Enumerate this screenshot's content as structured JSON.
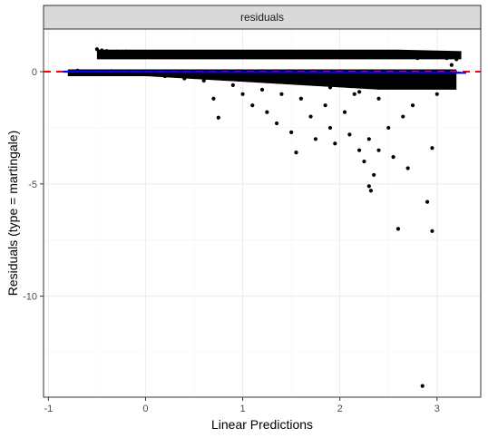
{
  "chart_data": {
    "type": "scatter",
    "facet_label": "residuals",
    "xlabel": "Linear Predictions",
    "ylabel": "Residuals (type = martingale)",
    "xlim": [
      -1.05,
      3.45
    ],
    "ylim": [
      -14.5,
      1.9
    ],
    "x_ticks": [
      -1,
      0,
      1,
      2,
      3
    ],
    "x_tick_labels": [
      "-1",
      "0",
      "1",
      "2",
      "3"
    ],
    "y_ticks": [
      0,
      -5,
      -10
    ],
    "y_tick_labels": [
      "0",
      "-5",
      "-10"
    ],
    "grid": true,
    "colors": {
      "points": "#000000",
      "zero_line": "#ff0000",
      "smooth_line": "#0000ff",
      "strip_bg": "#d9d9d9",
      "grid_major": "#ebebeb",
      "grid_minor": "#f5f5f5"
    },
    "series": [
      {
        "kind": "points",
        "points": [
          [
            -0.7,
            0.05
          ],
          [
            -0.6,
            0.02
          ],
          [
            -0.5,
            1.0
          ],
          [
            -0.45,
            0.95
          ],
          [
            -0.4,
            0.92
          ],
          [
            -0.35,
            0.03
          ],
          [
            -0.3,
            0.9
          ],
          [
            -0.25,
            -0.05
          ],
          [
            -0.2,
            0.9
          ],
          [
            -0.1,
            0.88
          ],
          [
            0.0,
            0.87
          ],
          [
            0.05,
            -0.1
          ],
          [
            0.1,
            0.86
          ],
          [
            0.2,
            0.85
          ],
          [
            0.3,
            -0.15
          ],
          [
            0.35,
            0.84
          ],
          [
            0.4,
            -0.3
          ],
          [
            0.5,
            0.83
          ],
          [
            0.6,
            -0.4
          ],
          [
            0.65,
            0.82
          ],
          [
            0.7,
            -1.2
          ],
          [
            0.75,
            -2.05
          ],
          [
            0.8,
            0.8
          ],
          [
            0.9,
            -0.6
          ],
          [
            0.95,
            0.79
          ],
          [
            1.0,
            -1.0
          ],
          [
            1.05,
            0.78
          ],
          [
            1.1,
            -1.5
          ],
          [
            1.15,
            0.77
          ],
          [
            1.2,
            -0.8
          ],
          [
            1.25,
            -1.8
          ],
          [
            1.3,
            0.75
          ],
          [
            1.35,
            -2.3
          ],
          [
            1.4,
            -1.0
          ],
          [
            1.45,
            0.74
          ],
          [
            1.5,
            -2.7
          ],
          [
            1.55,
            -3.6
          ],
          [
            1.6,
            -1.2
          ],
          [
            1.65,
            0.72
          ],
          [
            1.7,
            -2.0
          ],
          [
            1.75,
            -3.0
          ],
          [
            1.8,
            0.7
          ],
          [
            1.85,
            -1.5
          ],
          [
            1.9,
            -2.5
          ],
          [
            1.95,
            -3.2
          ],
          [
            2.0,
            0.68
          ],
          [
            2.05,
            -1.8
          ],
          [
            2.1,
            -2.8
          ],
          [
            2.15,
            -1.0
          ],
          [
            2.2,
            -3.5
          ],
          [
            2.25,
            -4.0
          ],
          [
            2.3,
            -3.0
          ],
          [
            2.3,
            -5.1
          ],
          [
            2.32,
            -5.3
          ],
          [
            2.35,
            -4.6
          ],
          [
            2.4,
            -3.5
          ],
          [
            2.45,
            0.65
          ],
          [
            2.5,
            -2.5
          ],
          [
            2.55,
            -3.8
          ],
          [
            2.6,
            -7.0
          ],
          [
            2.65,
            -2.0
          ],
          [
            2.7,
            -4.3
          ],
          [
            2.75,
            -1.5
          ],
          [
            2.8,
            0.6
          ],
          [
            2.85,
            -14.0
          ],
          [
            2.9,
            -5.8
          ],
          [
            2.95,
            -7.1
          ],
          [
            2.95,
            -3.4
          ],
          [
            3.0,
            -1.0
          ],
          [
            3.1,
            0.6
          ],
          [
            3.15,
            0.3
          ],
          [
            3.2,
            0.55
          ],
          [
            1.3,
            -0.3
          ],
          [
            1.6,
            -0.5
          ],
          [
            1.9,
            -0.7
          ],
          [
            2.2,
            -0.9
          ],
          [
            2.4,
            -1.2
          ],
          [
            2.6,
            -0.6
          ],
          [
            2.8,
            -0.3
          ],
          [
            0.2,
            -0.2
          ],
          [
            0.6,
            -0.3
          ],
          [
            1.0,
            -0.35
          ],
          [
            1.4,
            -0.45
          ],
          [
            1.8,
            -0.55
          ]
        ]
      },
      {
        "kind": "reference_line",
        "y": 0
      },
      {
        "kind": "smooth_line",
        "x": [
          -0.85,
          3.3
        ],
        "y": [
          0.0,
          -0.05
        ]
      }
    ]
  }
}
